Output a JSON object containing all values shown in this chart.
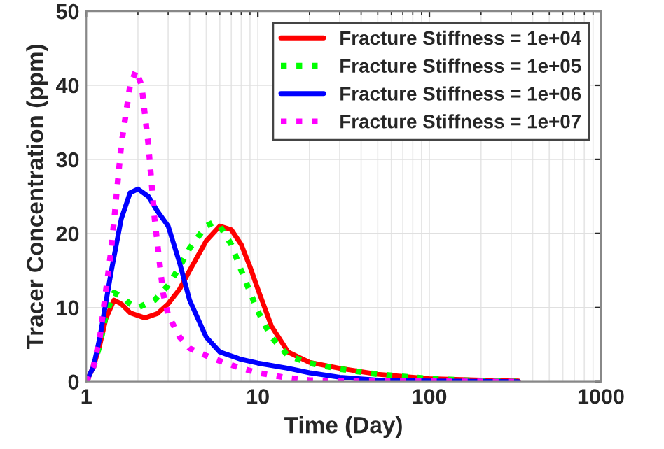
{
  "chart_data": {
    "type": "line",
    "xlabel": "Time (Day)",
    "ylabel": "Tracer Concentration (ppm)",
    "log": "x",
    "xlim": [
      1,
      1000
    ],
    "xticks": [
      1,
      10,
      100,
      1000
    ],
    "ylim": [
      0,
      50
    ],
    "yticks": [
      0,
      10,
      20,
      30,
      40,
      50
    ],
    "grid": true,
    "legend": "top right",
    "series": [
      {
        "name": "Fracture Stiffness = 1e+04",
        "color": "#ff0000",
        "line_style": "solid",
        "x": [
          1,
          1.1,
          1.2,
          1.3,
          1.45,
          1.6,
          1.8,
          2.2,
          2.6,
          3,
          3.5,
          4,
          5,
          6,
          7,
          8,
          9,
          10,
          12,
          15,
          20,
          30,
          50,
          100,
          200,
          330
        ],
        "values": [
          0,
          2,
          5,
          8.5,
          11,
          10.5,
          9.3,
          8.6,
          9.2,
          10.5,
          12.5,
          15,
          19,
          21,
          20.5,
          18.5,
          15.5,
          12.5,
          7.5,
          4,
          2.6,
          1.8,
          1,
          0.4,
          0.2,
          0.1
        ]
      },
      {
        "name": "Fracture Stiffness = 1e+05",
        "color": "#00ff00",
        "line_style": "dotted",
        "x": [
          1,
          1.1,
          1.2,
          1.3,
          1.45,
          1.6,
          1.8,
          2,
          2.5,
          3,
          3.5,
          4,
          5,
          5.5,
          6,
          7,
          8,
          10,
          12,
          15,
          20,
          30,
          50,
          100,
          200,
          330
        ],
        "values": [
          0,
          2,
          5,
          9,
          12,
          11.5,
          10.5,
          10,
          11,
          13,
          15.5,
          18,
          21,
          21.5,
          21,
          18.5,
          15,
          9.5,
          6,
          3.5,
          2.5,
          1.7,
          1,
          0.4,
          0.1,
          0
        ]
      },
      {
        "name": "Fracture Stiffness = 1e+06",
        "color": "#0000ff",
        "line_style": "solid",
        "x": [
          1,
          1.1,
          1.2,
          1.4,
          1.6,
          1.8,
          2,
          2.3,
          2.6,
          3,
          3.5,
          4,
          5,
          6,
          8,
          10,
          15,
          20,
          30,
          50,
          100,
          330
        ],
        "values": [
          0,
          2,
          6,
          15,
          22,
          25.5,
          26,
          25,
          23,
          21,
          16,
          11,
          6,
          4,
          3,
          2.5,
          1.8,
          1.2,
          0.6,
          0.2,
          0.1,
          0
        ]
      },
      {
        "name": "Fracture Stiffness = 1e+07",
        "color": "#ff00ff",
        "line_style": "dotted",
        "x": [
          1,
          1.1,
          1.2,
          1.4,
          1.6,
          1.8,
          1.95,
          2.1,
          2.3,
          2.5,
          2.8,
          3,
          3.5,
          4,
          5,
          6,
          8,
          10,
          15,
          20,
          30,
          330
        ],
        "values": [
          0,
          2,
          6,
          18,
          32,
          40,
          42,
          40,
          32,
          22,
          12,
          9,
          6,
          4.5,
          3.5,
          2.8,
          1.8,
          1.2,
          0.5,
          0.2,
          0.1,
          0
        ]
      }
    ]
  }
}
